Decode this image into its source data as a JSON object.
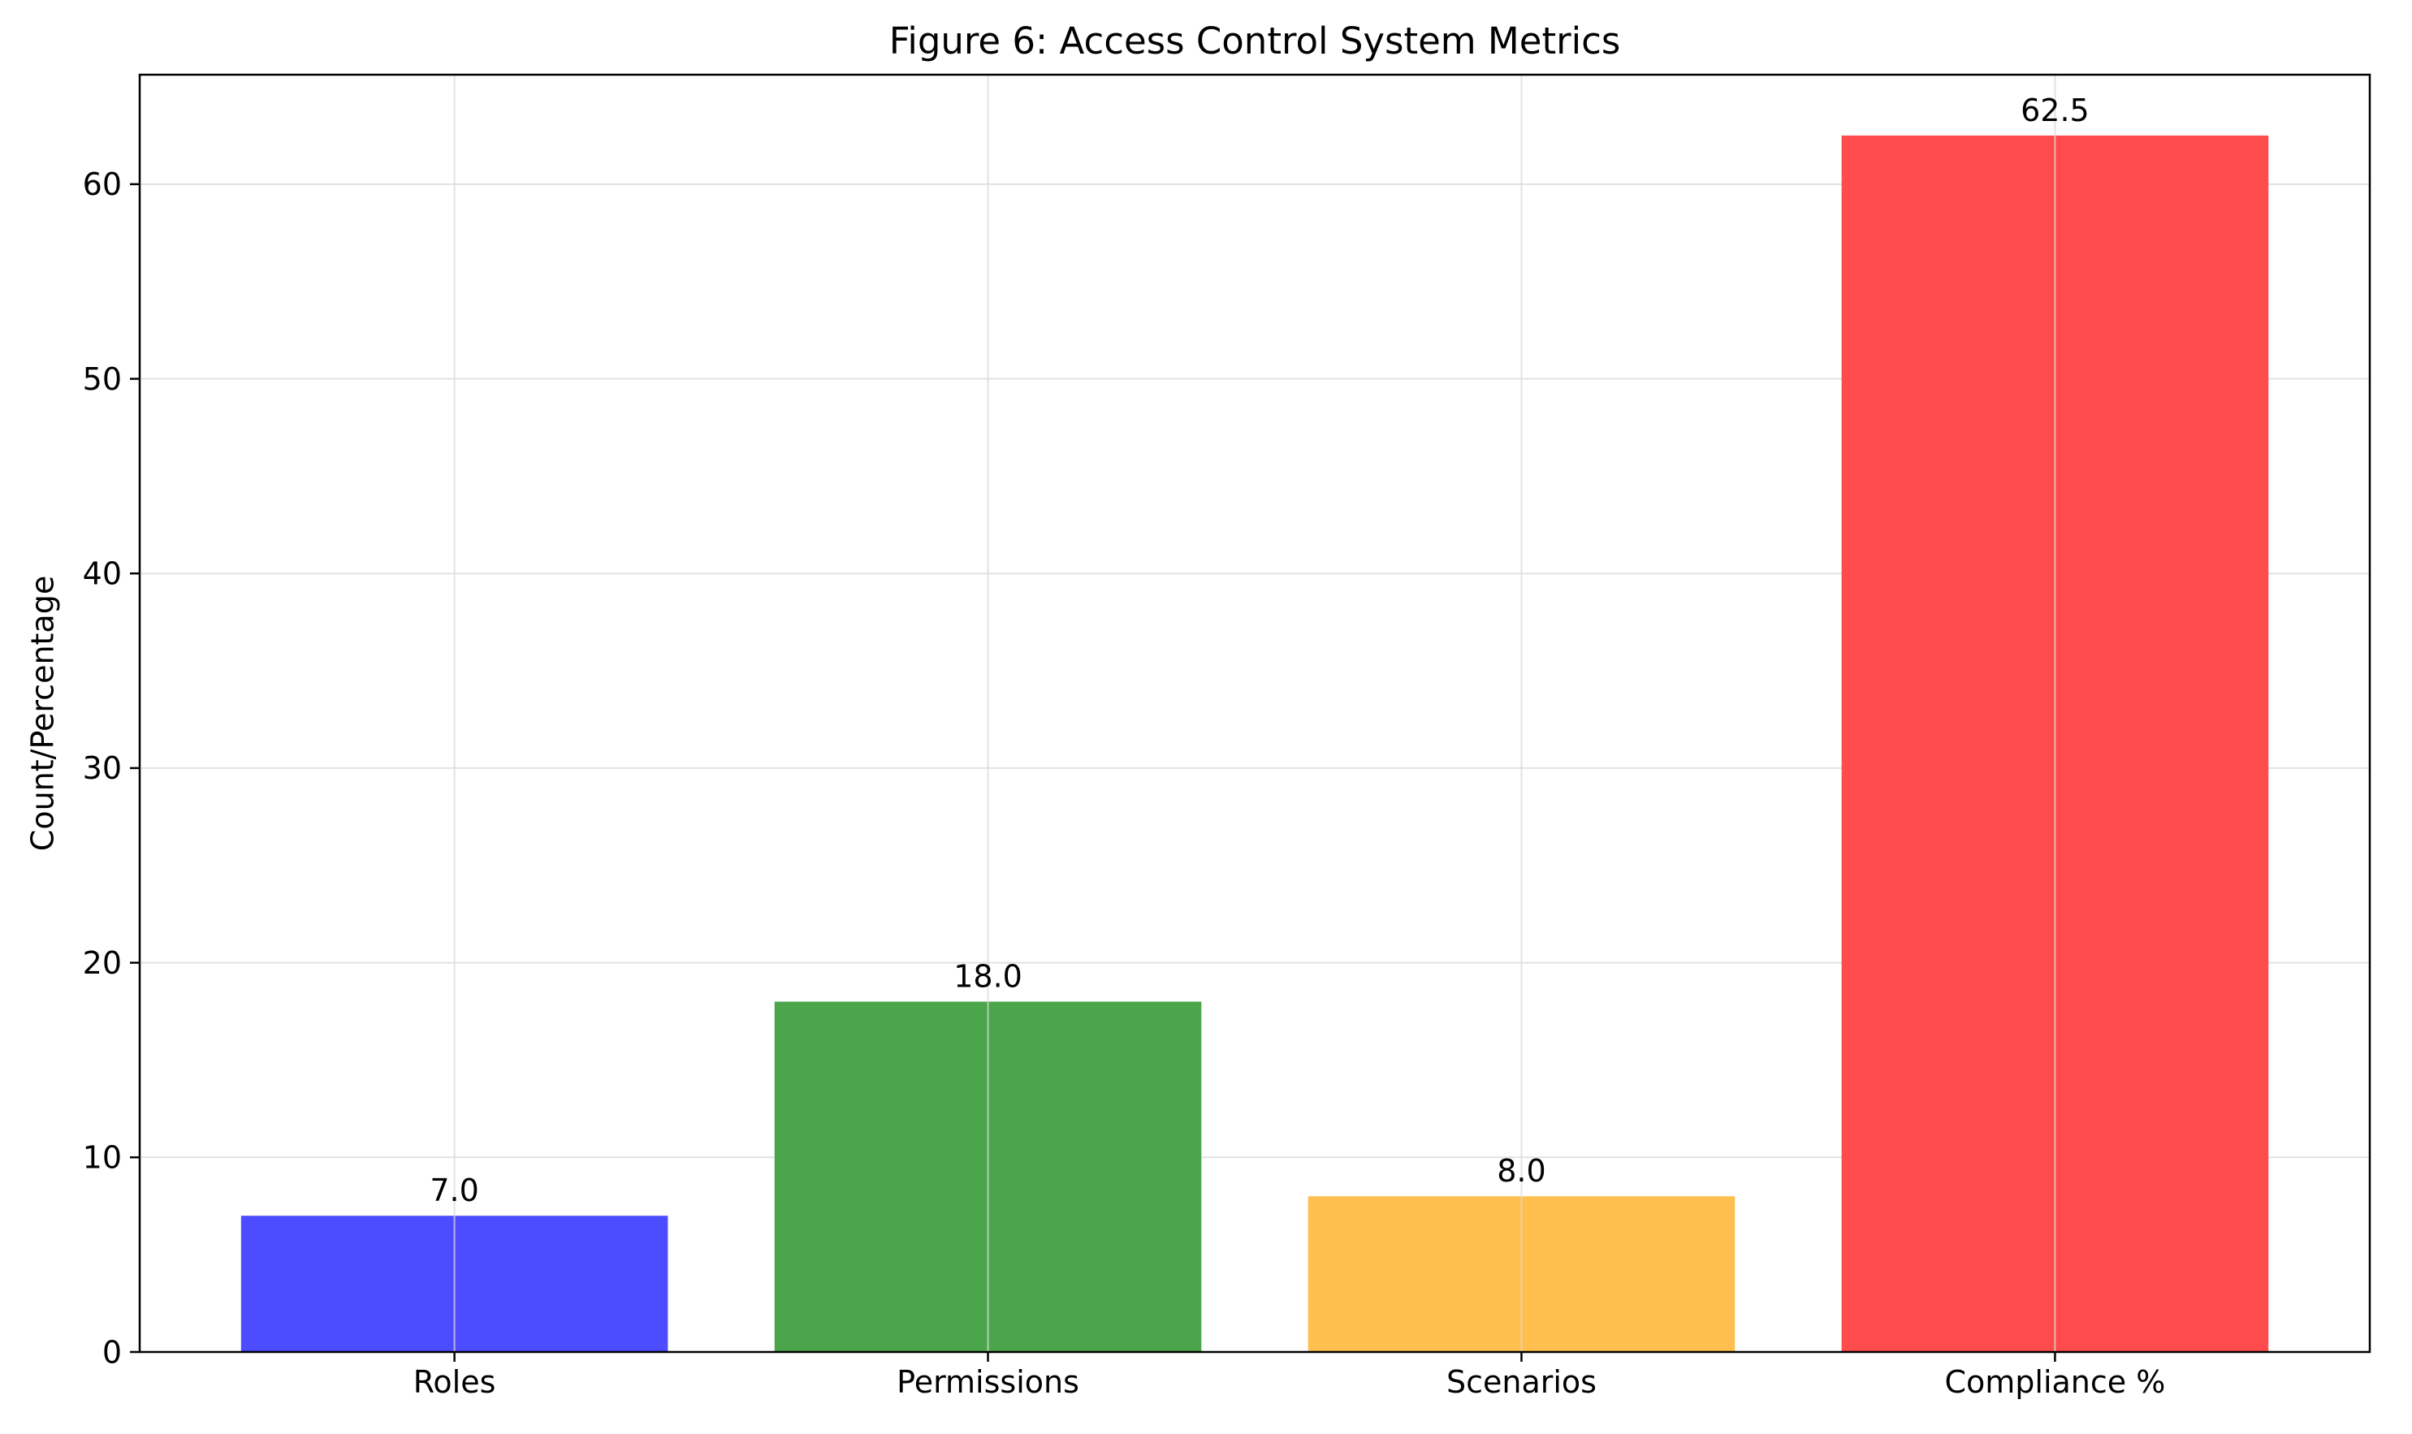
{
  "chart_data": {
    "type": "bar",
    "title": "Figure 6: Access Control System Metrics",
    "xlabel": "",
    "ylabel": "Count/Percentage",
    "categories": [
      "Roles",
      "Permissions",
      "Scenarios",
      "Compliance %"
    ],
    "values": [
      7.0,
      18.0,
      8.0,
      62.5
    ],
    "value_labels": [
      "7.0",
      "18.0",
      "8.0",
      "62.5"
    ],
    "colors": [
      "#4b4bff",
      "#4ba64b",
      "#ffbf4f",
      "#ff4b4b"
    ],
    "ylim": [
      0,
      65.625
    ],
    "yticks": [
      0,
      10,
      20,
      30,
      40,
      50,
      60
    ],
    "grid": true,
    "legend": "none"
  }
}
